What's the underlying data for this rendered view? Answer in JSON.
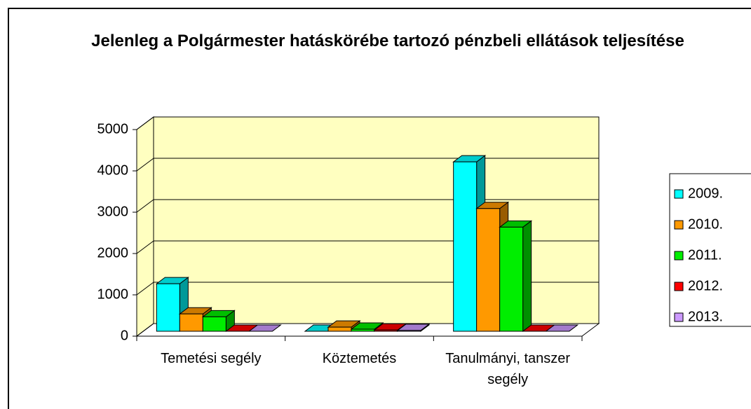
{
  "chart_data": {
    "type": "bar3d",
    "title": "Jelenleg a Polgármester hatáskörébe tartozó pénzbeli ellátások teljesítése",
    "categories": [
      "Temetési segély",
      "Köztemetés",
      "Tanulmányi, tanszer segély"
    ],
    "series": [
      {
        "name": "2009.",
        "color": "#00ffff",
        "values": [
          1150,
          0,
          4100
        ]
      },
      {
        "name": "2010.",
        "color": "#ff9900",
        "values": [
          420,
          100,
          2970
        ]
      },
      {
        "name": "2011.",
        "color": "#00ee00",
        "values": [
          350,
          50,
          2520
        ]
      },
      {
        "name": "2012.",
        "color": "#ff0000",
        "values": [
          0,
          30,
          0
        ]
      },
      {
        "name": "2013.",
        "color": "#cc99ff",
        "values": [
          0,
          20,
          0
        ]
      }
    ],
    "ylim": [
      0,
      5000
    ],
    "yticks": [
      0,
      1000,
      2000,
      3000,
      4000,
      5000
    ],
    "grid": true,
    "legend": "right"
  }
}
